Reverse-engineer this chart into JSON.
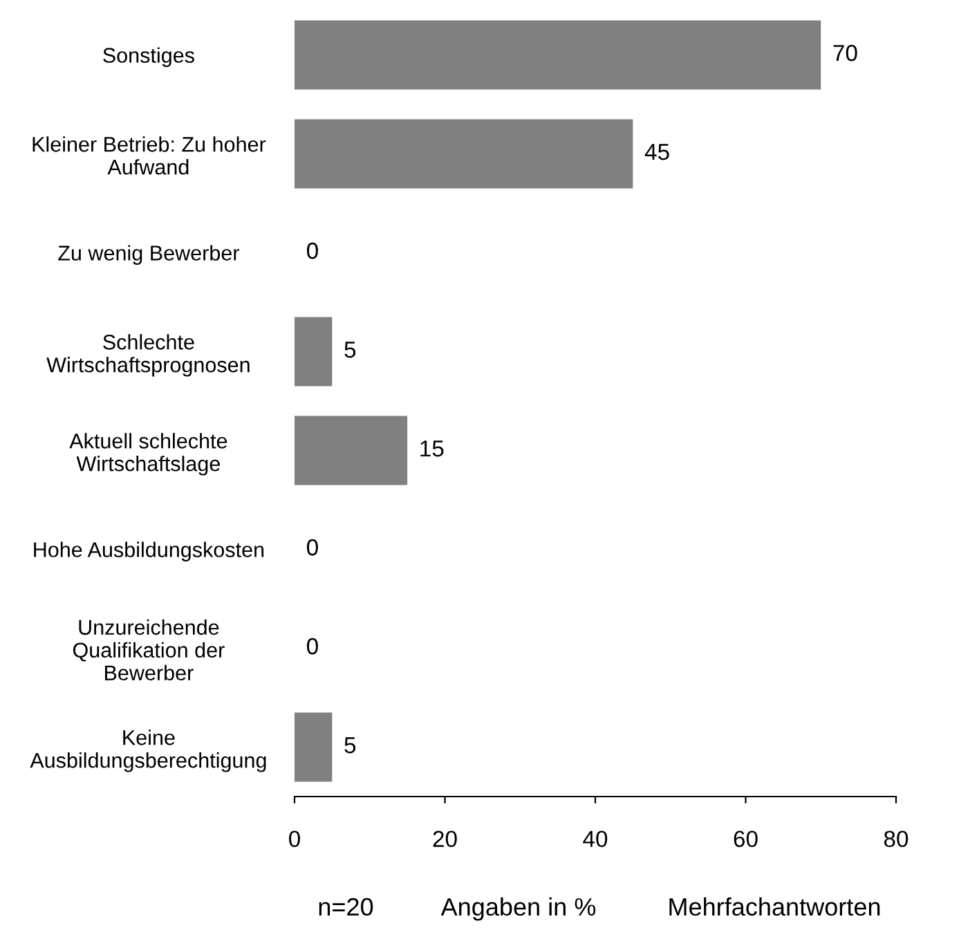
{
  "chart_data": {
    "type": "bar",
    "orientation": "horizontal",
    "categories": [
      "Sonstiges",
      "Kleiner Betrieb: Zu hoher\nAufwand",
      "Zu wenig Bewerber",
      "Schlechte\nWirtschaftsprognosen",
      "Aktuell schlechte\nWirtschaftslage",
      "Hohe Ausbildungskosten",
      "Unzureichende\nQualifikation der\nBewerber",
      "Keine\nAusbildungsberechtigung"
    ],
    "values": [
      70,
      45,
      0,
      5,
      15,
      0,
      0,
      5
    ],
    "color": "#808080",
    "xlim": [
      0,
      80
    ],
    "xticks": [
      0,
      20,
      40,
      60,
      80
    ],
    "data_labels": true,
    "grid": false,
    "annotations": [
      "n=20",
      "Angaben in %",
      "Mehrfachantworten"
    ]
  }
}
